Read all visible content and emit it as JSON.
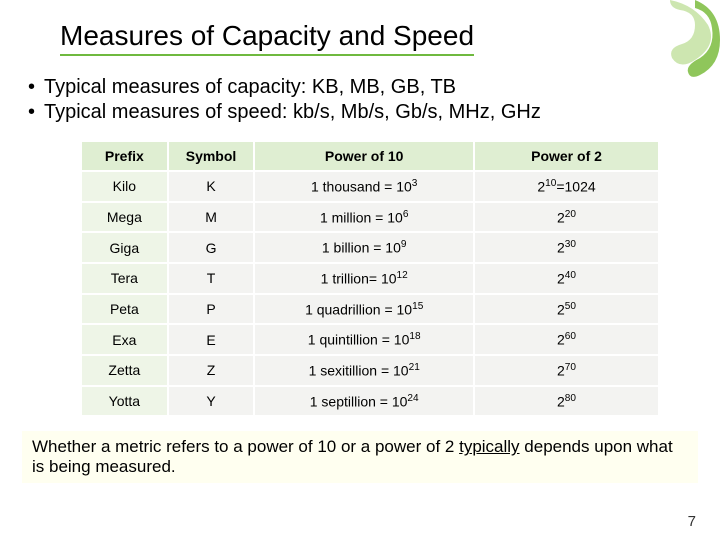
{
  "title": "Measures of Capacity and Speed",
  "bullets": [
    "Typical measures of capacity: KB, MB, GB, TB",
    "Typical measures of speed: kb/s, Mb/s, Gb/s, MHz, GHz"
  ],
  "table": {
    "headers": [
      "Prefix",
      "Symbol",
      "Power of 10",
      "Power of 2"
    ],
    "rows": [
      {
        "prefix": "Kilo",
        "symbol": "K",
        "p10_label": "1 thousand = 10",
        "p10_exp": "3",
        "p2_prefix": "2",
        "p2_exp": "10",
        "p2_suffix": "=1024"
      },
      {
        "prefix": "Mega",
        "symbol": "M",
        "p10_label": "1 million = 10",
        "p10_exp": "6",
        "p2_prefix": "2",
        "p2_exp": "20",
        "p2_suffix": ""
      },
      {
        "prefix": "Giga",
        "symbol": "G",
        "p10_label": "1 billion = 10",
        "p10_exp": "9",
        "p2_prefix": "2",
        "p2_exp": "30",
        "p2_suffix": ""
      },
      {
        "prefix": "Tera",
        "symbol": "T",
        "p10_label": "1 trillion= 10",
        "p10_exp": "12",
        "p2_prefix": "2",
        "p2_exp": "40",
        "p2_suffix": ""
      },
      {
        "prefix": "Peta",
        "symbol": "P",
        "p10_label": "1 quadrillion = 10",
        "p10_exp": "15",
        "p2_prefix": "2",
        "p2_exp": "50",
        "p2_suffix": ""
      },
      {
        "prefix": "Exa",
        "symbol": "E",
        "p10_label": "1 quintillion = 10",
        "p10_exp": "18",
        "p2_prefix": "2",
        "p2_exp": "60",
        "p2_suffix": ""
      },
      {
        "prefix": "Zetta",
        "symbol": "Z",
        "p10_label": "1 sexitillion = 10",
        "p10_exp": "21",
        "p2_prefix": "2",
        "p2_exp": "70",
        "p2_suffix": ""
      },
      {
        "prefix": "Yotta",
        "symbol": "Y",
        "p10_label": "1 septillion = 10",
        "p10_exp": "24",
        "p2_prefix": "2",
        "p2_exp": "80",
        "p2_suffix": ""
      }
    ],
    "col_widths_pct": [
      15,
      15,
      38,
      32
    ]
  },
  "footnote": {
    "pre": "Whether a metric refers to a power of 10 or a power of 2 ",
    "u": "typically",
    "post": " depends upon what is being measured."
  },
  "page_number": "7",
  "colors": {
    "accent_green": "#6fb93f",
    "th_bg": "#dfeed2",
    "td_bg": "#f3f3f1",
    "prefix_bg": "#eef5e7",
    "footnote_bg": "#fffff0",
    "deco_light": "#cde6b0",
    "deco_dark": "#8fc65b"
  }
}
